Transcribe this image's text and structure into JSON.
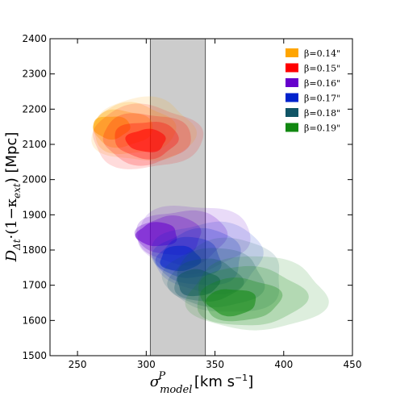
{
  "chart_data": {
    "type": "contour",
    "xlabel": "σ^P_model [km s⁻¹]",
    "ylabel": "D_Δt·(1−κ_ext) [Mpc]",
    "xlim": [
      230,
      450
    ],
    "ylim": [
      1500,
      2400
    ],
    "x_ticks": [
      250,
      300,
      350,
      400,
      450
    ],
    "y_ticks": [
      1500,
      1600,
      1700,
      1800,
      1900,
      2000,
      2100,
      2200,
      2300,
      2400
    ],
    "shaded_band": {
      "x_range": [
        303,
        343
      ],
      "color": "#999999"
    },
    "legend_position": "top-right",
    "series": [
      {
        "name": "β=0.14\"",
        "color": "#FFA500",
        "x": [
          260,
          335
        ],
        "y": [
          2050,
          2230
        ],
        "peak": [
          272,
          2150
        ]
      },
      {
        "name": "β=0.15\"",
        "color": "#FF0000",
        "x": [
          260,
          340
        ],
        "y": [
          2030,
          2210
        ],
        "peak": [
          300,
          2110
        ]
      },
      {
        "name": "β=0.16\"",
        "color": "#6600CC",
        "x": [
          293,
          375
        ],
        "y": [
          1740,
          1930
        ],
        "peak": [
          305,
          1845
        ]
      },
      {
        "name": "β=0.17\"",
        "color": "#0022CC",
        "x": [
          305,
          385
        ],
        "y": [
          1680,
          1880
        ],
        "peak": [
          322,
          1775
        ]
      },
      {
        "name": "β=0.18\"",
        "color": "#115566",
        "x": [
          315,
          400
        ],
        "y": [
          1620,
          1830
        ],
        "peak": [
          335,
          1705
        ]
      },
      {
        "name": "β=0.19\"",
        "color": "#118811",
        "x": [
          330,
          430
        ],
        "y": [
          1570,
          1780
        ],
        "peak": [
          360,
          1650
        ]
      }
    ]
  },
  "labels": {
    "xlabel_main": "σ",
    "xlabel_sup": "P",
    "xlabel_sub": "model",
    "xlabel_units": "[km s",
    "xlabel_units_sup": "−1",
    "xlabel_units_end": "]",
    "ylabel_D": "D",
    "ylabel_sub": "Δt",
    "ylabel_mid": "·(1−κ",
    "ylabel_sub2": "ext",
    "ylabel_end": ") [Mpc]"
  }
}
